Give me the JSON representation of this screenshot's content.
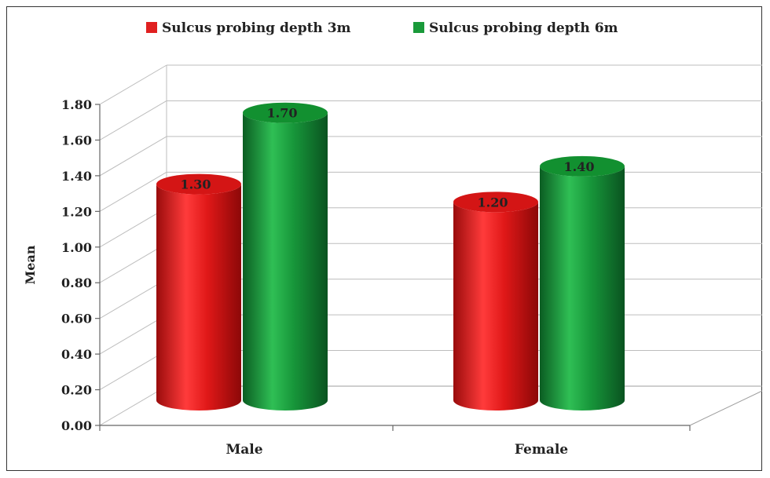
{
  "chart_data": {
    "type": "bar",
    "style": "3d-cylinder",
    "categories": [
      "Male",
      "Female"
    ],
    "series": [
      {
        "name": "Sulcus probing depth 3m",
        "color": "#e02020",
        "values": [
          1.3,
          1.2
        ],
        "labels": [
          "1.30",
          "1.20"
        ]
      },
      {
        "name": "Sulcus probing depth 6m",
        "color": "#1a9a3a",
        "values": [
          1.7,
          1.4
        ],
        "labels": [
          "1.70",
          "1.40"
        ]
      }
    ],
    "ylabel": "Mean",
    "ylim": [
      0,
      1.8
    ],
    "yticks": [
      0,
      0.2,
      0.4,
      0.6,
      0.8,
      1.0,
      1.2,
      1.4,
      1.6,
      1.8
    ],
    "ytick_labels": [
      "0.00",
      "0.20",
      "0.40",
      "0.60",
      "0.80",
      "1.00",
      "1.20",
      "1.40",
      "1.60",
      "1.80"
    ],
    "grid": true,
    "legend_position": "top"
  }
}
